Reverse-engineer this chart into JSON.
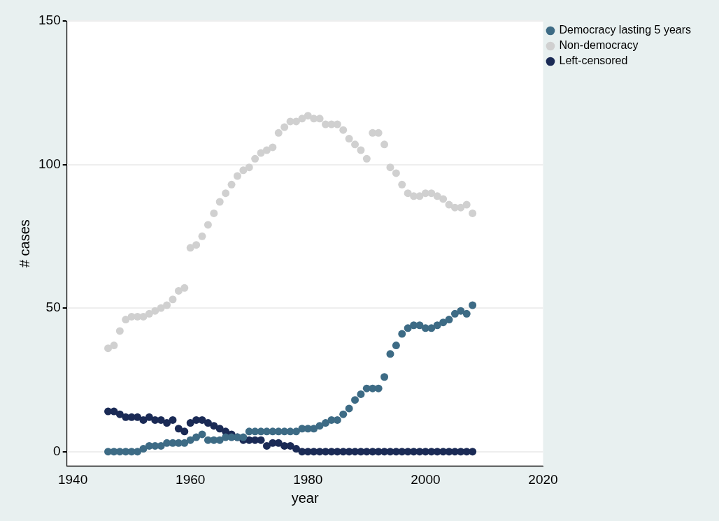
{
  "chart_data": {
    "type": "scatter",
    "xlabel": "year",
    "ylabel": "# cases",
    "x": [
      1946,
      1947,
      1948,
      1949,
      1950,
      1951,
      1952,
      1953,
      1954,
      1955,
      1956,
      1957,
      1958,
      1959,
      1960,
      1961,
      1962,
      1963,
      1964,
      1965,
      1966,
      1967,
      1968,
      1969,
      1970,
      1971,
      1972,
      1973,
      1974,
      1975,
      1976,
      1977,
      1978,
      1979,
      1980,
      1981,
      1982,
      1983,
      1984,
      1985,
      1986,
      1987,
      1988,
      1989,
      1990,
      1991,
      1992,
      1993,
      1994,
      1995,
      1996,
      1997,
      1998,
      1999,
      2000,
      2001,
      2002,
      2003,
      2004,
      2005,
      2006,
      2007,
      2008
    ],
    "series": [
      {
        "name": "Democracy lasting 5 years",
        "color": "#3d6b85",
        "values": [
          0,
          0,
          0,
          0,
          0,
          0,
          1,
          2,
          2,
          2,
          3,
          3,
          3,
          3,
          4,
          5,
          6,
          4,
          4,
          4,
          5,
          5,
          5,
          5,
          7,
          7,
          7,
          7,
          7,
          7,
          7,
          7,
          7,
          8,
          8,
          8,
          9,
          10,
          11,
          11,
          13,
          15,
          18,
          20,
          22,
          22,
          22,
          26,
          34,
          37,
          41,
          43,
          44,
          44,
          43,
          43,
          44,
          45,
          46,
          48,
          49,
          48,
          51
        ]
      },
      {
        "name": "Non-democracy",
        "color": "#d0d0d0",
        "values": [
          36,
          37,
          42,
          46,
          47,
          47,
          47,
          48,
          49,
          50,
          51,
          53,
          56,
          57,
          71,
          72,
          75,
          79,
          83,
          87,
          90,
          93,
          96,
          98,
          99,
          102,
          104,
          105,
          106,
          111,
          113,
          115,
          115,
          116,
          117,
          116,
          116,
          114,
          114,
          114,
          112,
          109,
          107,
          105,
          102,
          111,
          111,
          107,
          99,
          97,
          93,
          90,
          89,
          89,
          90,
          90,
          89,
          88,
          86,
          85,
          85,
          86,
          83
        ]
      },
      {
        "name": "Left-censored",
        "color": "#1a2a55",
        "values": [
          14,
          14,
          13,
          12,
          12,
          12,
          11,
          12,
          11,
          11,
          10,
          11,
          8,
          7,
          10,
          11,
          11,
          10,
          9,
          8,
          7,
          6,
          5,
          4,
          4,
          4,
          4,
          2,
          3,
          3,
          2,
          2,
          1,
          0,
          0,
          0,
          0,
          0,
          0,
          0,
          0,
          0,
          0,
          0,
          0,
          0,
          0,
          0,
          0,
          0,
          0,
          0,
          0,
          0,
          0,
          0,
          0,
          0,
          0,
          0,
          0,
          0,
          0
        ]
      }
    ],
    "xlim": [
      1939,
      2020
    ],
    "xticks": [
      1940,
      1960,
      1980,
      2000,
      2020
    ],
    "ylim": [
      -5,
      150
    ],
    "yticks": [
      0,
      50,
      100,
      150
    ],
    "grid": "y",
    "legend": "top right",
    "marker": "circle"
  }
}
